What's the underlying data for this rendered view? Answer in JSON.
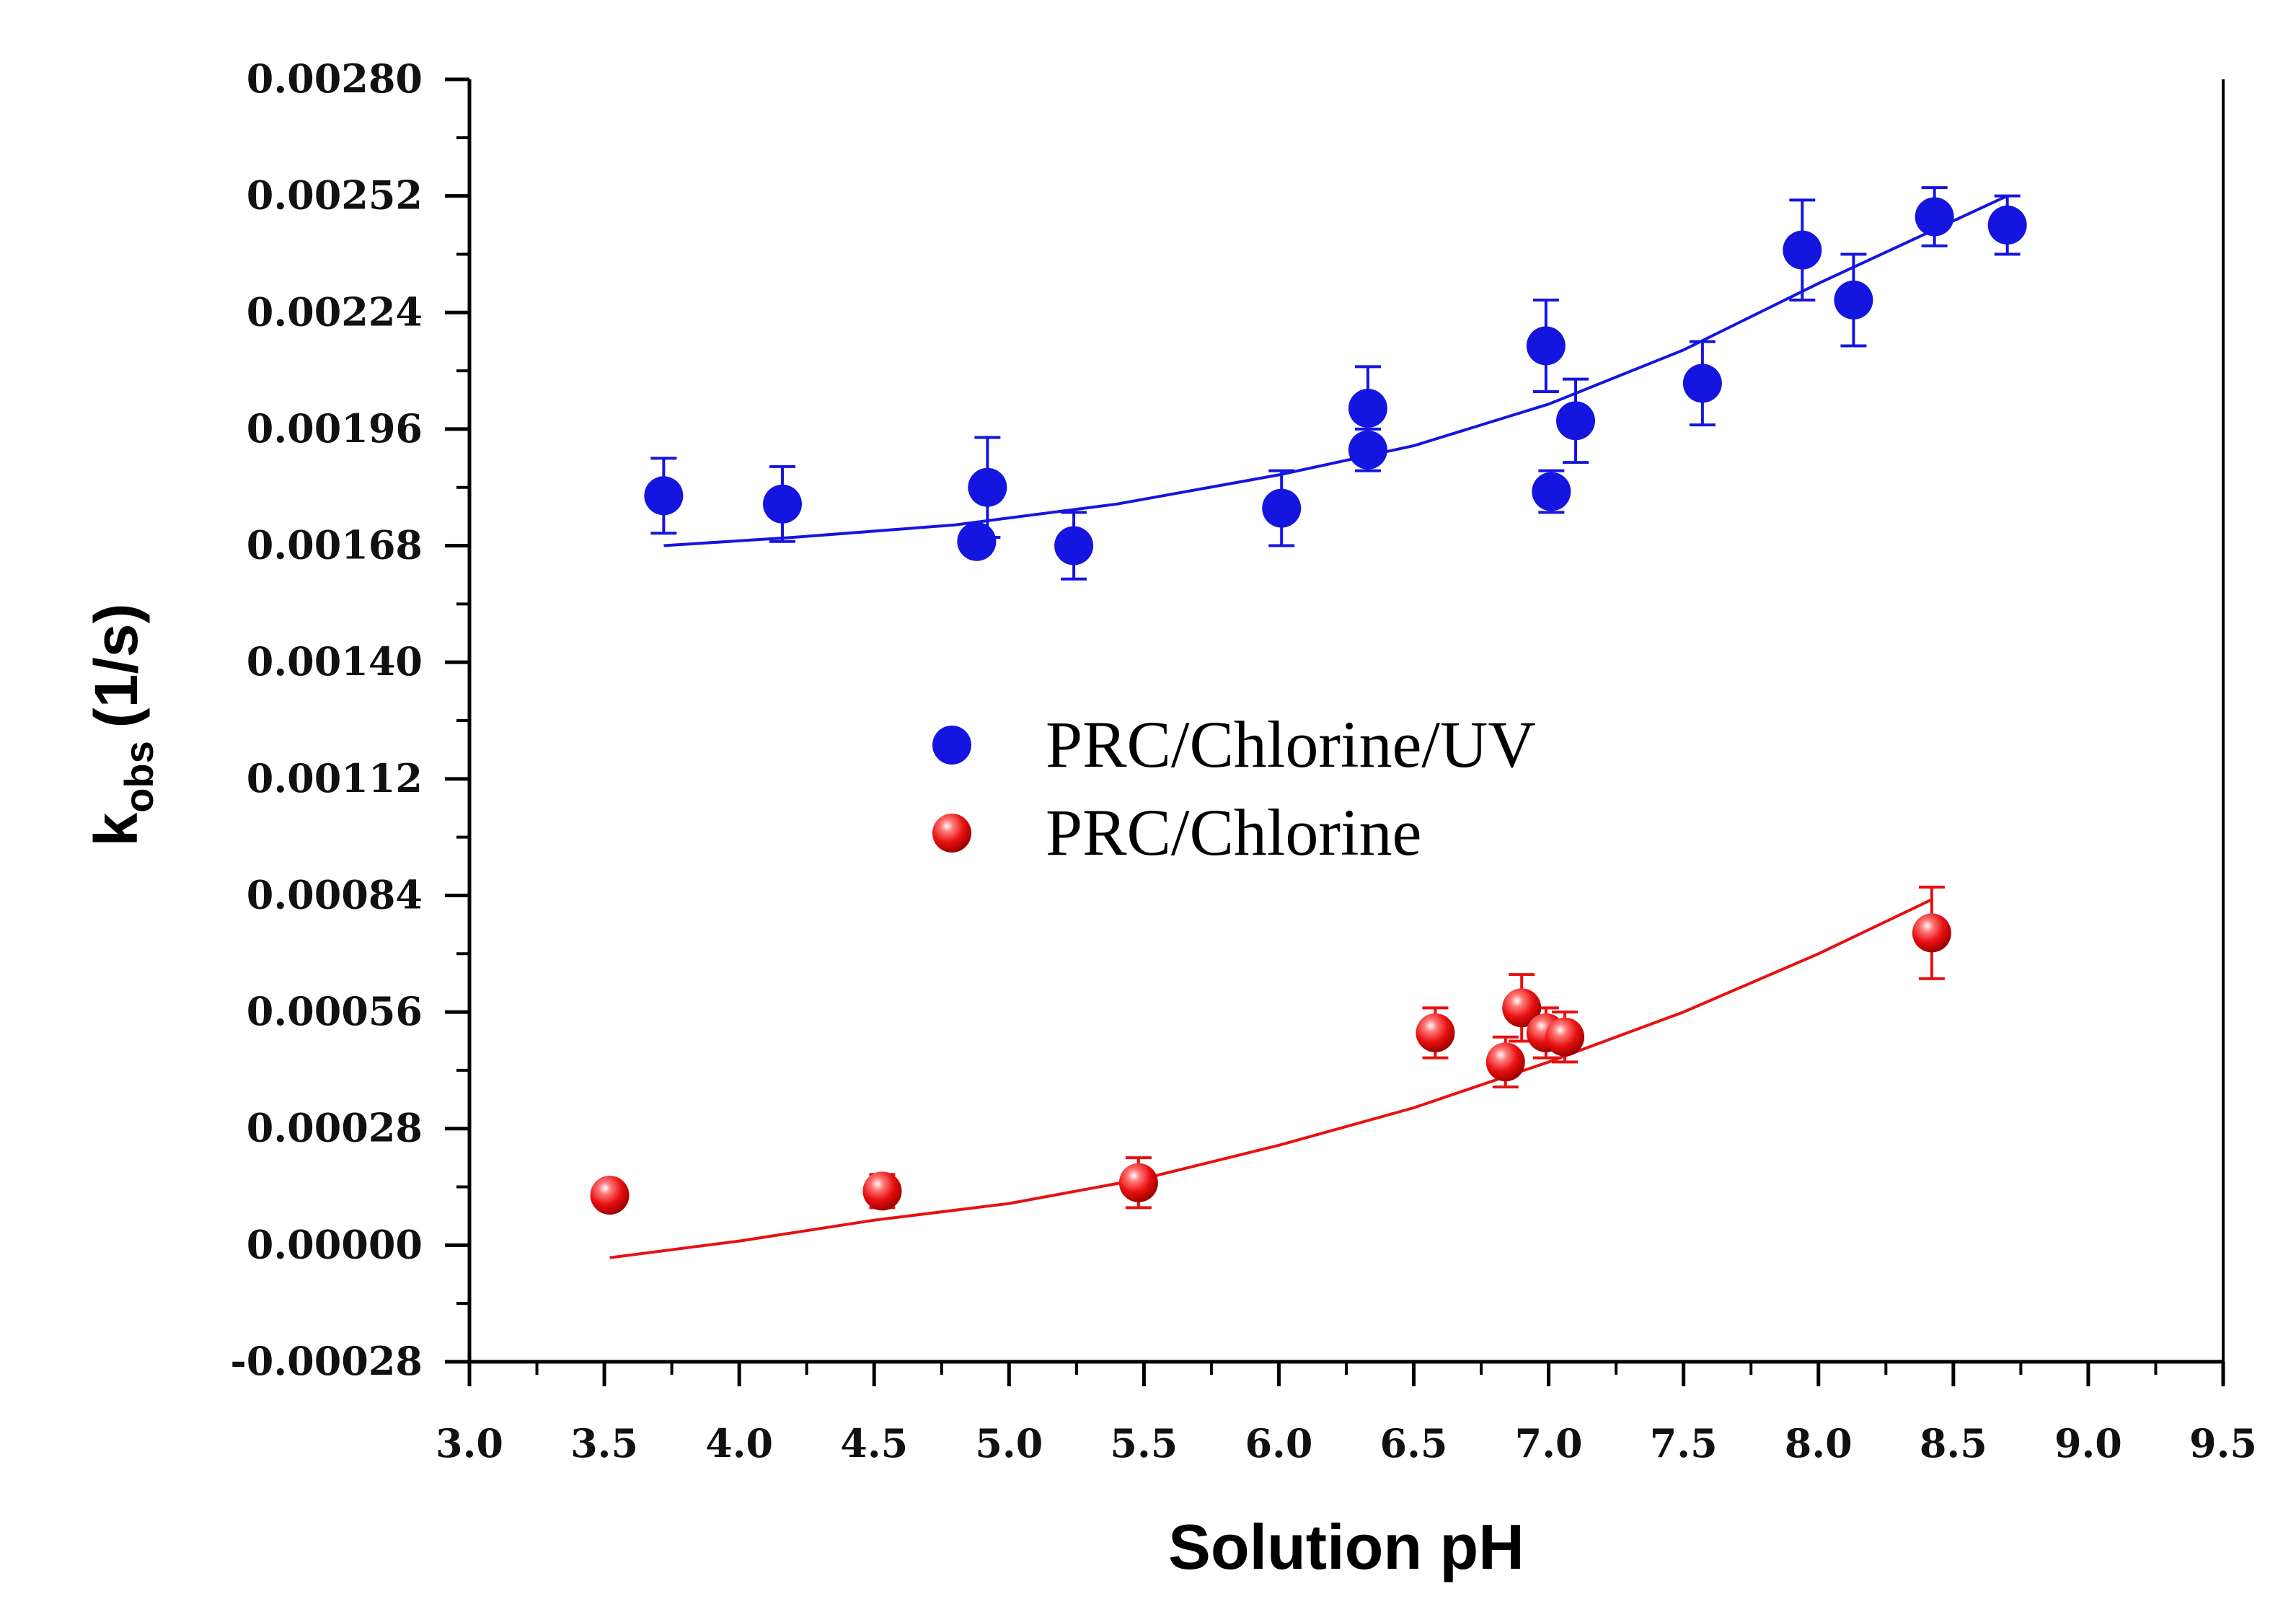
{
  "chart_data": {
    "type": "scatter",
    "xlabel": "Solution pH",
    "ylabel": {
      "main": "k",
      "sub": "obs",
      "unit": "(1/s)"
    },
    "xlim": [
      3.0,
      9.5
    ],
    "ylim": [
      -0.00028,
      0.0028
    ],
    "x_ticks": [
      "3.0",
      "3.5",
      "4.0",
      "4.5",
      "5.0",
      "5.5",
      "6.0",
      "6.5",
      "7.0",
      "7.5",
      "8.0",
      "8.5",
      "9.0",
      "9.5"
    ],
    "y_ticks": [
      "-0.00028",
      "0.00000",
      "0.00028",
      "0.00056",
      "0.00084",
      "0.00112",
      "0.00140",
      "0.00168",
      "0.00196",
      "0.00224",
      "0.00252",
      "0.00280"
    ],
    "grid": false,
    "legend_position": "center",
    "series": [
      {
        "name": "PRC/Chlorine/UV",
        "color": "#1515e0",
        "x": [
          3.72,
          4.16,
          4.88,
          4.92,
          5.24,
          6.01,
          6.33,
          6.33,
          6.99,
          7.01,
          7.1,
          7.57,
          7.94,
          8.13,
          8.43,
          8.7
        ],
        "y": [
          0.0018,
          0.00178,
          0.00169,
          0.00182,
          0.00168,
          0.00177,
          0.00191,
          0.00201,
          0.00216,
          0.00181,
          0.00198,
          0.00207,
          0.00239,
          0.00227,
          0.00247,
          0.00245
        ],
        "err": [
          9e-05,
          9e-05,
          3e-05,
          0.00012,
          8e-05,
          9e-05,
          5e-05,
          0.0001,
          0.00011,
          5e-05,
          0.0001,
          0.0001,
          0.00012,
          0.00011,
          7e-05,
          7e-05
        ],
        "fit": {
          "x": [
            3.72,
            4.2,
            4.8,
            5.4,
            6.0,
            6.5,
            7.0,
            7.5,
            8.0,
            8.4,
            8.7
          ],
          "y": [
            0.00168,
            0.0017,
            0.00173,
            0.00178,
            0.00185,
            0.00192,
            0.00202,
            0.00215,
            0.00231,
            0.00243,
            0.00252
          ]
        }
      },
      {
        "name": "PRC/Chlorine",
        "color": "#e81010",
        "x": [
          3.52,
          4.53,
          5.48,
          6.58,
          6.84,
          6.9,
          6.99,
          7.06,
          8.42
        ],
        "y": [
          0.00012,
          0.00013,
          0.00015,
          0.00051,
          0.00044,
          0.00057,
          0.00051,
          0.0005,
          0.00075
        ],
        "err": [
          2e-05,
          4e-05,
          6e-05,
          6e-05,
          6e-05,
          8e-05,
          6e-05,
          6e-05,
          0.00011
        ],
        "fit": {
          "x": [
            3.52,
            4.0,
            4.5,
            5.0,
            5.5,
            6.0,
            6.5,
            7.0,
            7.5,
            8.0,
            8.42
          ],
          "y": [
            -3e-05,
            1e-05,
            6e-05,
            0.0001,
            0.00016,
            0.00024,
            0.00033,
            0.00044,
            0.00056,
            0.0007,
            0.00083
          ]
        }
      }
    ]
  }
}
